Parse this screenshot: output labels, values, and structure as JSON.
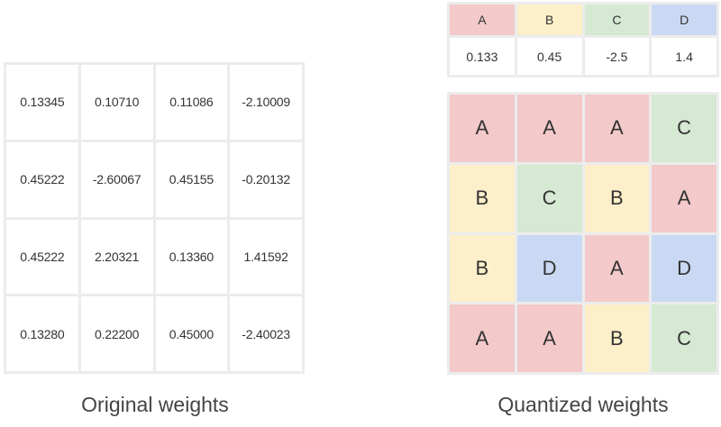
{
  "original": {
    "caption": "Original weights",
    "rows": [
      [
        "0.13345",
        "0.10710",
        "0.11086",
        "-2.10009"
      ],
      [
        "0.45222",
        "-2.60067",
        "0.45155",
        "-0.20132"
      ],
      [
        "0.45222",
        "2.20321",
        "0.13360",
        "1.41592"
      ],
      [
        "0.13280",
        "0.22200",
        "0.45000",
        "-2.40023"
      ]
    ]
  },
  "codebook": {
    "keys": [
      "A",
      "B",
      "C",
      "D"
    ],
    "values": [
      "0.133",
      "0.45",
      "-2.5",
      "1.4"
    ]
  },
  "quantized": {
    "caption": "Quantized weights",
    "rows": [
      [
        "A",
        "A",
        "A",
        "C"
      ],
      [
        "B",
        "C",
        "B",
        "A"
      ],
      [
        "B",
        "D",
        "A",
        "D"
      ],
      [
        "A",
        "A",
        "B",
        "C"
      ]
    ]
  },
  "colors": {
    "A": "#f3c9ca",
    "B": "#fdefc9",
    "C": "#d6e9d3",
    "D": "#c9d9f3",
    "grid_border": "#ececec"
  }
}
